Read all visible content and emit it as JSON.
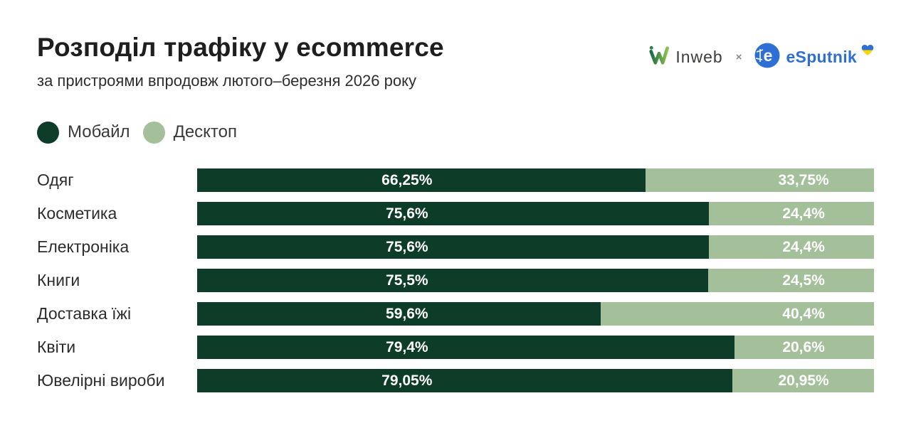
{
  "header": {
    "title": "Розподіл трафіку у ecommerce",
    "subtitle": "за пристроями впродовж лютого–березня 2026 року",
    "logos": {
      "inweb_text": "Inweb",
      "separator": "×",
      "esputnik_text": "eSputnik"
    }
  },
  "legend": [
    {
      "label": "Мобайл",
      "color": "#0d3c28"
    },
    {
      "label": "Десктоп",
      "color": "#a4c09a"
    }
  ],
  "chart_data": {
    "type": "bar",
    "orientation": "horizontal",
    "stacked": true,
    "title": "Розподіл трафіку у ecommerce",
    "subtitle": "за пристроями впродовж лютого–березня 2026 року",
    "xlim": [
      0,
      100
    ],
    "grid": false,
    "legend_position": "top-left",
    "categories": [
      "Одяг",
      "Косметика",
      "Електроніка",
      "Книги",
      "Доставка їжі",
      "Квіти",
      "Ювелірні вироби"
    ],
    "series": [
      {
        "name": "Мобайл",
        "color": "#0d3c28",
        "values": [
          66.25,
          75.6,
          75.6,
          75.5,
          59.6,
          79.4,
          79.05
        ],
        "labels": [
          "66,25%",
          "75,6%",
          "75,6%",
          "75,5%",
          "59,6%",
          "79,4%",
          "79,05%"
        ]
      },
      {
        "name": "Десктоп",
        "color": "#a4c09a",
        "values": [
          33.75,
          24.4,
          24.4,
          24.5,
          40.4,
          20.6,
          20.95
        ],
        "labels": [
          "33,75%",
          "24,4%",
          "24,4%",
          "24,5%",
          "40,4%",
          "20,6%",
          "20,95%"
        ]
      }
    ],
    "colors": {
      "mobile": "#0d3c28",
      "desktop": "#a4c09a",
      "esputnik_blue": "#2e6fd6",
      "inweb_green": "#8bc34a"
    }
  }
}
